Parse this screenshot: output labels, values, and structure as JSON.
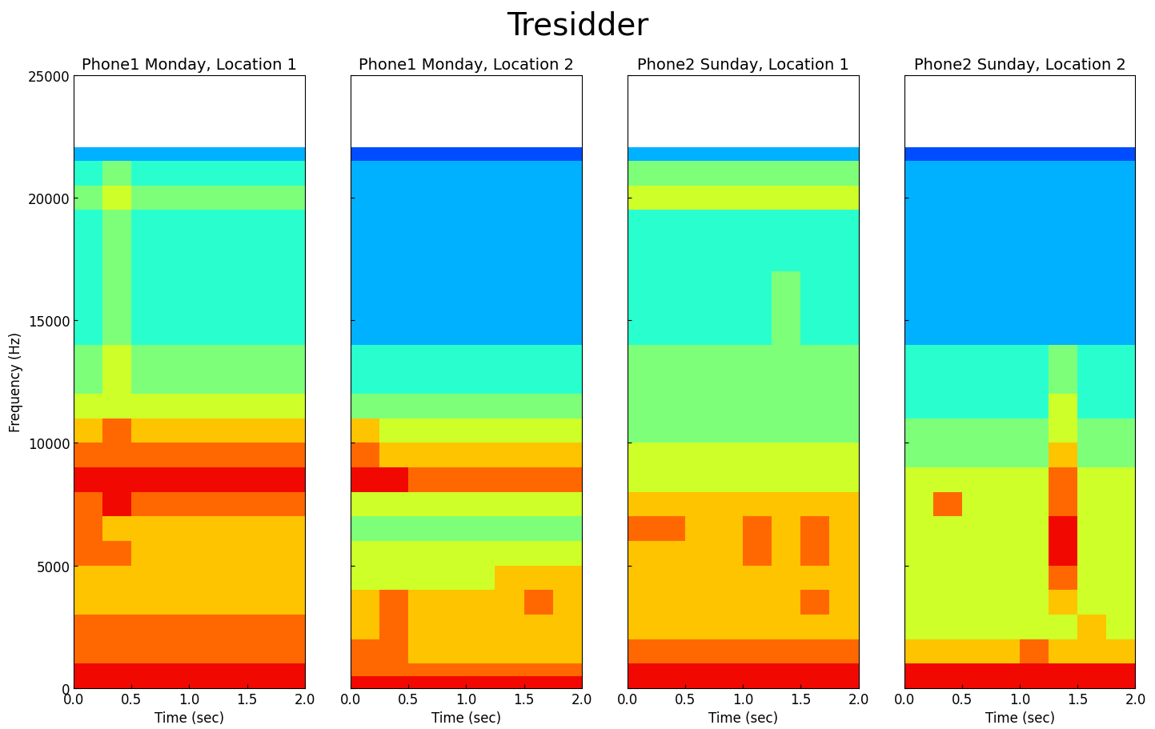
{
  "title": "Tresidder",
  "chart_data": [
    {
      "type": "heatmap",
      "title": "Phone1 Monday, Location 1",
      "xlabel": "Time (sec)",
      "ylabel": "Frequency (Hz)",
      "xlim": [
        0,
        2
      ],
      "ylim": [
        0,
        25000
      ],
      "xticks": [
        {
          "value": 0,
          "label": "0.0"
        },
        {
          "value": 0.5,
          "label": "0.5"
        },
        {
          "value": 1,
          "label": "1.0"
        },
        {
          "value": 1.5,
          "label": "1.5"
        },
        {
          "value": 2,
          "label": "2.0"
        }
      ],
      "yticks": [
        0,
        5000,
        10000,
        15000,
        20000,
        25000
      ],
      "tick_labels": true,
      "time_edges": [
        0,
        0.25,
        0.5,
        0.75,
        1.0,
        1.25,
        1.5,
        1.75,
        2.0
      ],
      "frequency_edges": [
        0,
        500,
        1000,
        2000,
        3000,
        4000,
        5000,
        6000,
        7000,
        8000,
        9000,
        10000,
        11000,
        12000,
        14000,
        17000,
        19500,
        20500,
        21500,
        22050
      ],
      "color_range": [
        0,
        10
      ],
      "cells": [
        [
          9,
          9,
          9,
          9,
          9,
          9,
          9,
          9
        ],
        [
          9,
          9,
          9,
          9,
          9,
          9,
          9,
          9
        ],
        [
          8,
          8,
          8,
          8,
          8,
          8,
          8,
          8
        ],
        [
          8,
          8,
          8,
          8,
          8,
          8,
          8,
          8
        ],
        [
          7,
          7,
          7,
          7,
          7,
          7,
          7,
          7
        ],
        [
          7,
          7,
          7,
          7,
          7,
          7,
          7,
          7
        ],
        [
          8,
          8,
          7,
          7,
          7,
          7,
          7,
          7
        ],
        [
          8,
          7,
          7,
          7,
          7,
          7,
          7,
          7
        ],
        [
          8,
          9,
          8,
          8,
          8,
          8,
          8,
          8
        ],
        [
          9,
          9,
          9,
          9,
          9,
          9,
          9,
          9
        ],
        [
          8,
          8,
          8,
          8,
          8,
          8,
          8,
          8
        ],
        [
          7,
          8,
          7,
          7,
          7,
          7,
          7,
          7
        ],
        [
          6,
          6,
          6,
          6,
          6,
          6,
          6,
          6
        ],
        [
          5,
          6,
          5,
          5,
          5,
          5,
          5,
          5
        ],
        [
          4,
          5,
          4,
          4,
          4,
          4,
          4,
          4
        ],
        [
          4,
          5,
          4,
          4,
          4,
          4,
          4,
          4
        ],
        [
          5,
          6,
          5,
          5,
          5,
          5,
          5,
          5
        ],
        [
          4,
          5,
          4,
          4,
          4,
          4,
          4,
          4
        ],
        [
          3,
          3,
          3,
          3,
          3,
          3,
          3,
          3
        ]
      ]
    },
    {
      "type": "heatmap",
      "title": "Phone1 Monday, Location 2",
      "xlabel": "Time (sec)",
      "xlim": [
        0,
        2
      ],
      "ylim": [
        0,
        25000
      ],
      "xticks": [
        {
          "value": 0,
          "label": "0.0"
        },
        {
          "value": 0.5,
          "label": "0.5"
        },
        {
          "value": 1,
          "label": "1.0"
        },
        {
          "value": 1.5,
          "label": "1.5"
        },
        {
          "value": 2,
          "label": "2.0"
        }
      ],
      "yticks": [
        0,
        5000,
        10000,
        15000,
        20000,
        25000
      ],
      "tick_labels": "x",
      "time_edges": [
        0,
        0.25,
        0.5,
        0.75,
        1.0,
        1.25,
        1.5,
        1.75,
        2.0
      ],
      "frequency_edges": [
        0,
        500,
        1000,
        2000,
        3000,
        4000,
        5000,
        6000,
        7000,
        8000,
        9000,
        10000,
        11000,
        12000,
        14000,
        17000,
        19500,
        20500,
        21500,
        22050
      ],
      "color_range": [
        0,
        10
      ],
      "cells": [
        [
          9,
          9,
          9,
          9,
          9,
          9,
          9,
          9
        ],
        [
          8,
          8,
          8,
          8,
          8,
          8,
          8,
          8
        ],
        [
          8,
          8,
          7,
          7,
          7,
          7,
          7,
          7
        ],
        [
          7,
          8,
          7,
          7,
          7,
          7,
          7,
          7
        ],
        [
          7,
          8,
          7,
          7,
          7,
          7,
          8,
          7
        ],
        [
          6,
          6,
          6,
          6,
          6,
          7,
          7,
          7
        ],
        [
          6,
          6,
          6,
          6,
          6,
          6,
          6,
          6
        ],
        [
          5,
          5,
          5,
          5,
          5,
          5,
          5,
          5
        ],
        [
          6,
          6,
          6,
          6,
          6,
          6,
          6,
          6
        ],
        [
          9,
          9,
          8,
          8,
          8,
          8,
          8,
          8
        ],
        [
          8,
          7,
          7,
          7,
          7,
          7,
          7,
          7
        ],
        [
          7,
          6,
          6,
          6,
          6,
          6,
          6,
          6
        ],
        [
          5,
          5,
          5,
          5,
          5,
          5,
          5,
          5
        ],
        [
          4,
          4,
          4,
          4,
          4,
          4,
          4,
          4
        ],
        [
          3,
          3,
          3,
          3,
          3,
          3,
          3,
          3
        ],
        [
          3,
          3,
          3,
          3,
          3,
          3,
          3,
          3
        ],
        [
          3,
          3,
          3,
          3,
          3,
          3,
          3,
          3
        ],
        [
          3,
          3,
          3,
          3,
          3,
          3,
          3,
          3
        ],
        [
          2,
          2,
          2,
          2,
          2,
          2,
          2,
          2
        ]
      ]
    },
    {
      "type": "heatmap",
      "title": "Phone2 Sunday, Location 1",
      "xlabel": "Time (sec)",
      "xlim": [
        0,
        2
      ],
      "ylim": [
        0,
        25000
      ],
      "xticks": [
        {
          "value": 0,
          "label": "0.0"
        },
        {
          "value": 0.5,
          "label": "0.5"
        },
        {
          "value": 1,
          "label": "1.0"
        },
        {
          "value": 1.5,
          "label": "1.5"
        },
        {
          "value": 2,
          "label": "2.0"
        }
      ],
      "yticks": [
        0,
        5000,
        10000,
        15000,
        20000,
        25000
      ],
      "tick_labels": "x",
      "time_edges": [
        0,
        0.25,
        0.5,
        0.75,
        1.0,
        1.25,
        1.5,
        1.75,
        2.0
      ],
      "frequency_edges": [
        0,
        500,
        1000,
        2000,
        3000,
        4000,
        5000,
        6000,
        7000,
        8000,
        9000,
        10000,
        11000,
        12000,
        14000,
        17000,
        19500,
        20500,
        21500,
        22050
      ],
      "color_range": [
        0,
        10
      ],
      "cells": [
        [
          9,
          9,
          9,
          9,
          9,
          9,
          9,
          9
        ],
        [
          9,
          9,
          9,
          9,
          9,
          9,
          9,
          9
        ],
        [
          8,
          8,
          8,
          8,
          8,
          8,
          8,
          8
        ],
        [
          7,
          7,
          7,
          7,
          7,
          7,
          7,
          7
        ],
        [
          7,
          7,
          7,
          7,
          7,
          7,
          8,
          7
        ],
        [
          7,
          7,
          7,
          7,
          7,
          7,
          7,
          7
        ],
        [
          7,
          7,
          7,
          7,
          8,
          7,
          8,
          7
        ],
        [
          8,
          8,
          7,
          7,
          8,
          7,
          8,
          7
        ],
        [
          7,
          7,
          7,
          7,
          7,
          7,
          7,
          7
        ],
        [
          6,
          6,
          6,
          6,
          6,
          6,
          6,
          6
        ],
        [
          6,
          6,
          6,
          6,
          6,
          6,
          6,
          6
        ],
        [
          5,
          5,
          5,
          5,
          5,
          5,
          5,
          5
        ],
        [
          5,
          5,
          5,
          5,
          5,
          5,
          5,
          5
        ],
        [
          5,
          5,
          5,
          5,
          5,
          5,
          5,
          5
        ],
        [
          4,
          4,
          4,
          4,
          4,
          5,
          4,
          4
        ],
        [
          4,
          4,
          4,
          4,
          4,
          4,
          4,
          4
        ],
        [
          6,
          6,
          6,
          6,
          6,
          6,
          6,
          6
        ],
        [
          5,
          5,
          5,
          5,
          5,
          5,
          5,
          5
        ],
        [
          3,
          3,
          3,
          3,
          3,
          3,
          3,
          3
        ]
      ]
    },
    {
      "type": "heatmap",
      "title": "Phone2 Sunday, Location 2",
      "xlabel": "Time (sec)",
      "xlim": [
        0,
        2
      ],
      "ylim": [
        0,
        25000
      ],
      "xticks": [
        {
          "value": 0,
          "label": "0.0"
        },
        {
          "value": 0.5,
          "label": "0.5"
        },
        {
          "value": 1,
          "label": "1.0"
        },
        {
          "value": 1.5,
          "label": "1.5"
        },
        {
          "value": 2,
          "label": "2.0"
        }
      ],
      "yticks": [
        0,
        5000,
        10000,
        15000,
        20000,
        25000
      ],
      "tick_labels": "x",
      "time_edges": [
        0,
        0.25,
        0.5,
        0.75,
        1.0,
        1.25,
        1.5,
        1.75,
        2.0
      ],
      "frequency_edges": [
        0,
        500,
        1000,
        2000,
        3000,
        4000,
        5000,
        6000,
        7000,
        8000,
        9000,
        10000,
        11000,
        12000,
        14000,
        17000,
        19500,
        20500,
        21500,
        22050
      ],
      "color_range": [
        0,
        10
      ],
      "cells": [
        [
          9,
          9,
          9,
          9,
          9,
          9,
          9,
          9
        ],
        [
          9,
          9,
          9,
          9,
          9,
          9,
          9,
          9
        ],
        [
          7,
          7,
          7,
          7,
          8,
          7,
          7,
          7
        ],
        [
          6,
          6,
          6,
          6,
          6,
          6,
          7,
          6
        ],
        [
          6,
          6,
          6,
          6,
          6,
          7,
          6,
          6
        ],
        [
          6,
          6,
          6,
          6,
          6,
          8,
          6,
          6
        ],
        [
          6,
          6,
          6,
          6,
          6,
          9,
          6,
          6
        ],
        [
          6,
          6,
          6,
          6,
          6,
          9,
          6,
          6
        ],
        [
          6,
          8,
          6,
          6,
          6,
          8,
          6,
          6
        ],
        [
          6,
          6,
          6,
          6,
          6,
          8,
          6,
          6
        ],
        [
          5,
          5,
          5,
          5,
          5,
          7,
          5,
          5
        ],
        [
          5,
          5,
          5,
          5,
          5,
          6,
          5,
          5
        ],
        [
          4,
          4,
          4,
          4,
          4,
          6,
          4,
          4
        ],
        [
          4,
          4,
          4,
          4,
          4,
          5,
          4,
          4
        ],
        [
          3,
          3,
          3,
          3,
          3,
          3,
          3,
          3
        ],
        [
          3,
          3,
          3,
          3,
          3,
          3,
          3,
          3
        ],
        [
          3,
          3,
          3,
          3,
          3,
          3,
          3,
          3
        ],
        [
          3,
          3,
          3,
          3,
          3,
          3,
          3,
          3
        ],
        [
          2,
          2,
          2,
          2,
          2,
          2,
          2,
          2
        ]
      ]
    }
  ]
}
